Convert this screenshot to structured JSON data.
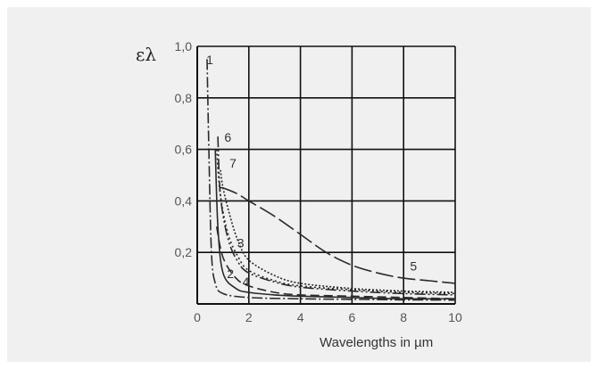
{
  "chart_data": {
    "type": "line",
    "title": "",
    "xlabel": "Wavelengths in µm",
    "ylabel": "ελ",
    "xlim": [
      0,
      10
    ],
    "ylim": [
      0,
      1.0
    ],
    "grid": true,
    "x_ticks": [
      "0",
      "2",
      "4",
      "6",
      "8",
      "10"
    ],
    "y_ticks": [
      "0,2",
      "0,4",
      "0,6",
      "0,8",
      "1,0"
    ],
    "series": [
      {
        "name": "1",
        "dash": "12 3 2 3",
        "x": [
          0.38,
          0.45,
          0.55,
          0.7,
          1,
          2,
          4,
          6,
          8,
          10
        ],
        "y": [
          0.95,
          0.6,
          0.2,
          0.08,
          0.04,
          0.025,
          0.02,
          0.018,
          0.016,
          0.015
        ]
      },
      {
        "name": "2",
        "dash": "",
        "x": [
          0.7,
          0.8,
          1,
          1.5,
          2,
          3,
          4,
          6,
          8,
          10
        ],
        "y": [
          0.6,
          0.3,
          0.12,
          0.06,
          0.045,
          0.035,
          0.03,
          0.025,
          0.02,
          0.02
        ]
      },
      {
        "name": "3",
        "dash": "2 3",
        "x": [
          0.75,
          0.9,
          1.2,
          1.6,
          2,
          3,
          4,
          6,
          8,
          10
        ],
        "y": [
          0.6,
          0.42,
          0.27,
          0.18,
          0.13,
          0.09,
          0.07,
          0.055,
          0.045,
          0.04
        ]
      },
      {
        "name": "4",
        "dash": "10 5",
        "x": [
          0.75,
          1,
          1.5,
          2,
          3,
          4,
          6,
          8,
          10
        ],
        "y": [
          0.3,
          0.18,
          0.1,
          0.07,
          0.045,
          0.035,
          0.03,
          0.025,
          0.02
        ]
      },
      {
        "name": "5",
        "dash": "20 5",
        "x": [
          0.9,
          1,
          1.5,
          2,
          3,
          4,
          5,
          6,
          7,
          8,
          9,
          10
        ],
        "y": [
          0.45,
          0.45,
          0.43,
          0.4,
          0.34,
          0.27,
          0.2,
          0.15,
          0.12,
          0.1,
          0.09,
          0.08
        ]
      },
      {
        "name": "6",
        "dash": "12 3 2 3 2 3",
        "x": [
          0.8,
          0.9,
          1.2,
          1.6,
          2,
          3,
          4,
          6,
          8,
          10
        ],
        "y": [
          0.65,
          0.42,
          0.25,
          0.16,
          0.12,
          0.085,
          0.065,
          0.05,
          0.04,
          0.035
        ]
      },
      {
        "name": "7",
        "dash": "2 2",
        "x": [
          0.9,
          1,
          1.3,
          1.6,
          2,
          3,
          4,
          6,
          8,
          10
        ],
        "y": [
          0.52,
          0.45,
          0.33,
          0.24,
          0.17,
          0.11,
          0.08,
          0.06,
          0.05,
          0.045
        ]
      }
    ],
    "curve_labels": [
      {
        "text": "1",
        "x": 0.35,
        "y": 0.93
      },
      {
        "text": "6",
        "x": 1.05,
        "y": 0.63
      },
      {
        "text": "7",
        "x": 1.25,
        "y": 0.53
      },
      {
        "text": "3",
        "x": 1.55,
        "y": 0.22
      },
      {
        "text": "2",
        "x": 1.15,
        "y": 0.1
      },
      {
        "text": "4",
        "x": 1.75,
        "y": 0.07
      },
      {
        "text": "5",
        "x": 8.25,
        "y": 0.13
      }
    ]
  }
}
